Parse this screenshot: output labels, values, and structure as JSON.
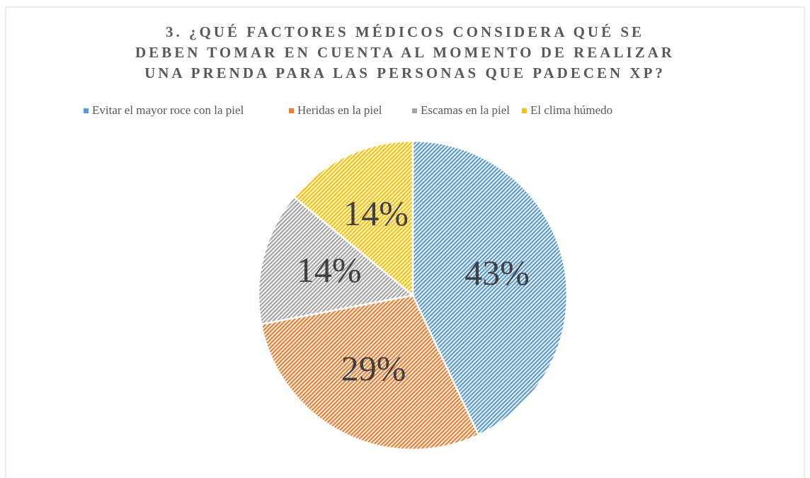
{
  "chart_data": {
    "type": "pie",
    "title": [
      "3. ¿QUÉ FACTORES MÉDICOS CONSIDERA QUÉ SE",
      "DEBEN TOMAR EN CUENTA AL MOMENTO DE REALIZAR",
      "UNA PRENDA PARA LAS PERSONAS QUE PADECEN XP?"
    ],
    "categories": [
      "Evitar el mayor roce con la piel",
      "Heridas en la piel",
      "Escamas en la piel",
      "El clima húmedo"
    ],
    "values": [
      43,
      29,
      14,
      14
    ],
    "value_labels": [
      "43%",
      "29%",
      "14%",
      "14%"
    ],
    "colors": [
      "#5b9bd5",
      "#ed7d31",
      "#a5a5a5",
      "#ffc000"
    ],
    "legend": "top"
  }
}
